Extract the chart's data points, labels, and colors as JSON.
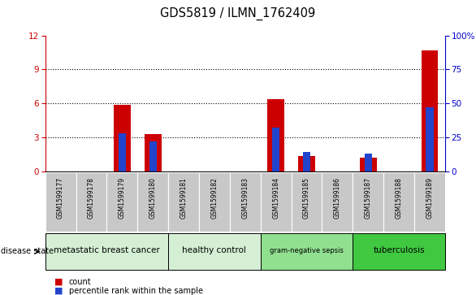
{
  "title": "GDS5819 / ILMN_1762409",
  "samples": [
    "GSM1599177",
    "GSM1599178",
    "GSM1599179",
    "GSM1599180",
    "GSM1599181",
    "GSM1599182",
    "GSM1599183",
    "GSM1599184",
    "GSM1599185",
    "GSM1599186",
    "GSM1599187",
    "GSM1599188",
    "GSM1599189"
  ],
  "count_values": [
    0,
    0,
    5.85,
    3.3,
    0,
    0,
    0,
    6.35,
    1.3,
    0,
    1.2,
    0,
    10.7
  ],
  "percentile_values": [
    0,
    0,
    28,
    22,
    0,
    0,
    0,
    32,
    14,
    0,
    13,
    0,
    47
  ],
  "bar_color_red": "#cc0000",
  "bar_color_blue": "#2244cc",
  "ylim_left": [
    0,
    12
  ],
  "ylim_right": [
    0,
    100
  ],
  "yticks_left": [
    0,
    3,
    6,
    9,
    12
  ],
  "yticks_right": [
    0,
    25,
    50,
    75,
    100
  ],
  "disease_groups": [
    {
      "label": "metastatic breast cancer",
      "start": 0,
      "end": 4,
      "color": "#d5efd5"
    },
    {
      "label": "healthy control",
      "start": 4,
      "end": 7,
      "color": "#d5efd5"
    },
    {
      "label": "gram-negative sepsis",
      "start": 7,
      "end": 10,
      "color": "#90e090"
    },
    {
      "label": "tuberculosis",
      "start": 10,
      "end": 13,
      "color": "#40c840"
    }
  ],
  "disease_state_label": "disease state",
  "legend_count": "count",
  "legend_percentile": "percentile rank within the sample",
  "label_color_left": "#cc0000",
  "label_color_right": "#0000cc",
  "grid_color": "black",
  "bg_color_plot": "#ffffff",
  "bg_color_xtick": "#c8c8c8",
  "bar_width": 0.55
}
